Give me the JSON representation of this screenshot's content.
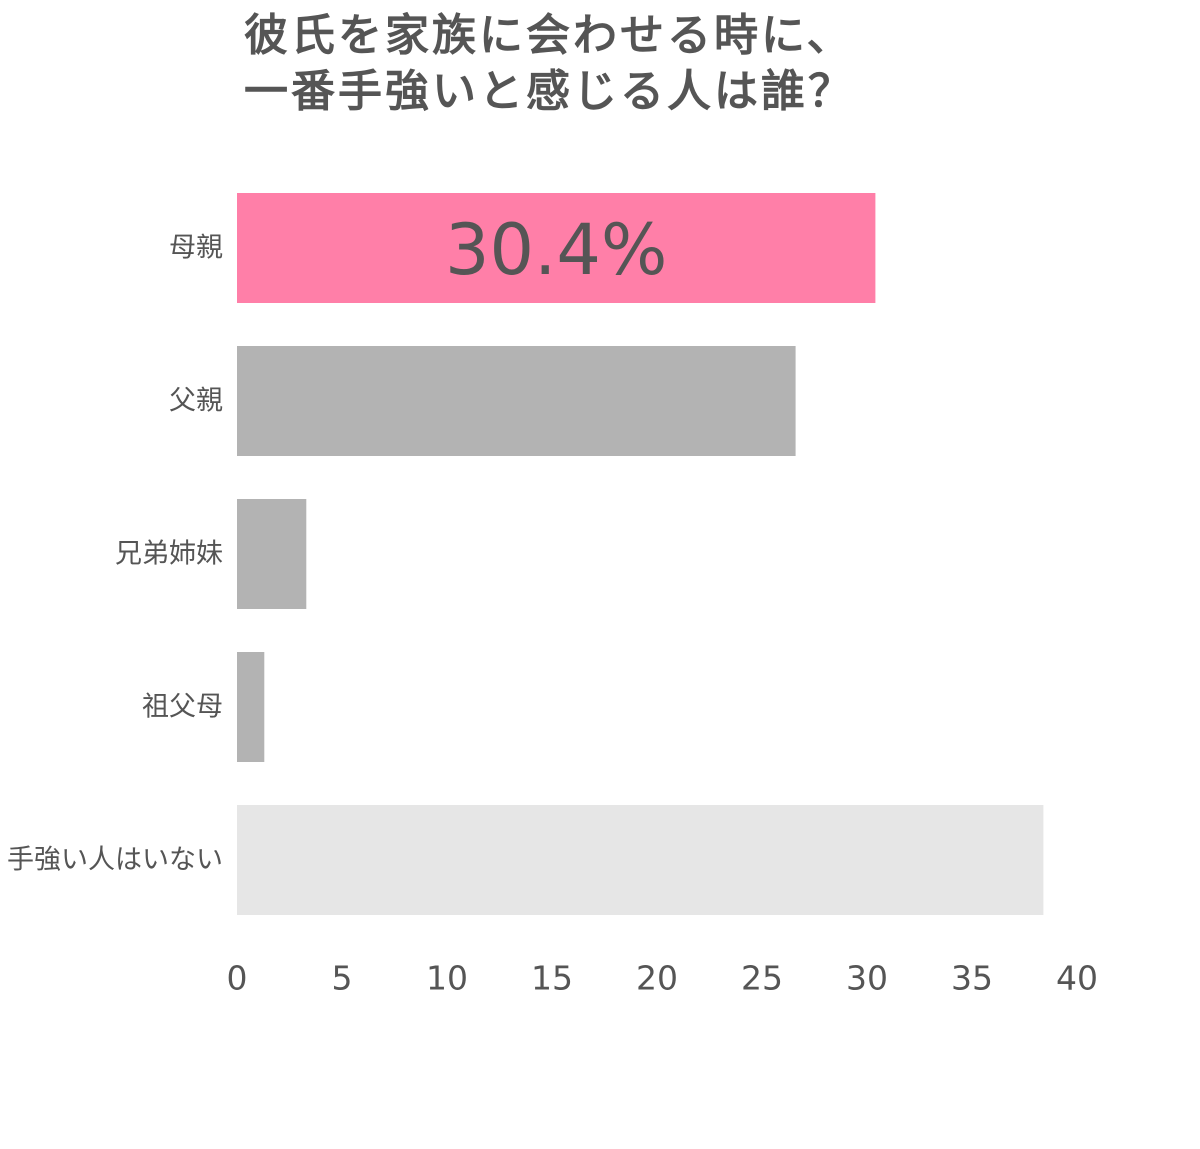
{
  "chart_data": {
    "type": "bar",
    "orientation": "horizontal",
    "title": [
      "彼氏を家族に会わせる時に、",
      "一番手強いと感じる人は誰？"
    ],
    "categories": [
      "母親",
      "父親",
      "兄弟姉妹",
      "祖父母",
      "手強い人はいない"
    ],
    "values": [
      30.4,
      26.6,
      3.3,
      1.3,
      38.4
    ],
    "colors": [
      "#ff7fa8",
      "#b3b3b3",
      "#b3b3b3",
      "#b3b3b3",
      "#e6e6e6"
    ],
    "highlight": {
      "index": 0,
      "label": "30.4%"
    },
    "xlim": [
      0,
      40
    ],
    "xticks": [
      "0",
      "5",
      "10",
      "15",
      "20",
      "25",
      "30",
      "35",
      "40"
    ],
    "xlabel": "",
    "ylabel": "",
    "grid": false,
    "legend": "none"
  }
}
